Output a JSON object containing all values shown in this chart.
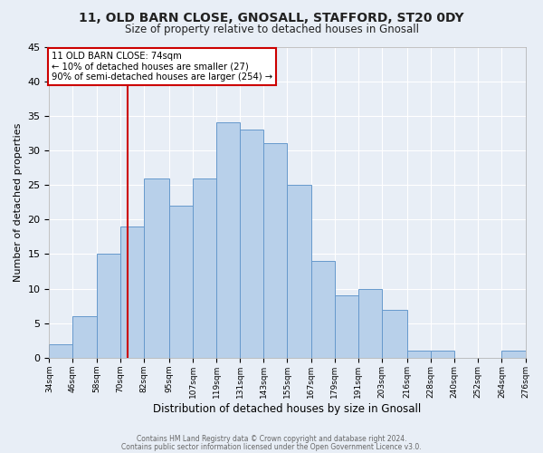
{
  "title": "11, OLD BARN CLOSE, GNOSALL, STAFFORD, ST20 0DY",
  "subtitle": "Size of property relative to detached houses in Gnosall",
  "xlabel": "Distribution of detached houses by size in Gnosall",
  "ylabel": "Number of detached properties",
  "bin_edges": [
    34,
    46,
    58,
    70,
    82,
    95,
    107,
    119,
    131,
    143,
    155,
    167,
    179,
    191,
    203,
    216,
    228,
    240,
    252,
    264,
    276
  ],
  "counts": [
    2,
    6,
    15,
    19,
    26,
    22,
    26,
    34,
    33,
    31,
    25,
    14,
    9,
    10,
    7,
    1,
    1,
    0,
    0,
    1
  ],
  "bar_color": "#b8d0ea",
  "bar_edge_color": "#6699cc",
  "property_size": 74,
  "annotation_title": "11 OLD BARN CLOSE: 74sqm",
  "annotation_line1": "← 10% of detached houses are smaller (27)",
  "annotation_line2": "90% of semi-detached houses are larger (254) →",
  "annotation_box_color": "#ffffff",
  "annotation_box_edge": "#cc0000",
  "vline_color": "#cc0000",
  "ylim": [
    0,
    45
  ],
  "yticks": [
    0,
    5,
    10,
    15,
    20,
    25,
    30,
    35,
    40,
    45
  ],
  "tick_labels": [
    "34sqm",
    "46sqm",
    "58sqm",
    "70sqm",
    "82sqm",
    "95sqm",
    "107sqm",
    "119sqm",
    "131sqm",
    "143sqm",
    "155sqm",
    "167sqm",
    "179sqm",
    "191sqm",
    "203sqm",
    "216sqm",
    "228sqm",
    "240sqm",
    "252sqm",
    "264sqm",
    "276sqm"
  ],
  "footer1": "Contains HM Land Registry data © Crown copyright and database right 2024.",
  "footer2": "Contains public sector information licensed under the Open Government Licence v3.0.",
  "bg_color": "#e8eef6",
  "title_fontsize": 10,
  "subtitle_fontsize": 8.5
}
